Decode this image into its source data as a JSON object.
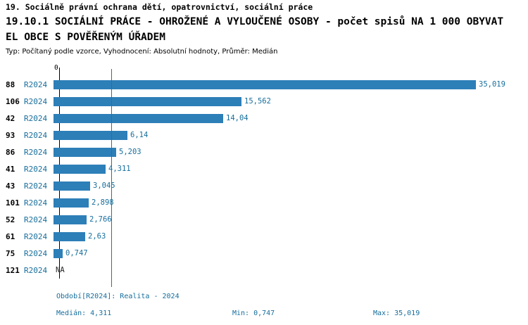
{
  "header": {
    "line1": "19. Sociálně právní ochrana dětí, opatrovnictví, sociální práce",
    "line2": "19.10.1 SOCIÁLNÍ PRÁCE - OHROŽENÉ A VYLOUČENÉ OSOBY - počet spisů NA 1 000 OBYVAT",
    "line3": "EL OBCE S POVĚŘENÝM ÚŘADEM",
    "subtitle": "Typ: Počítaný podle vzorce, Vyhodnocení: Absolutní hodnoty, Průměr: Medián"
  },
  "chart_data": {
    "type": "bar",
    "orientation": "horizontal",
    "title": "19.10.1 SOCIÁLNÍ PRÁCE - OHROŽENÉ A VYLOUČENÉ OSOBY - počet spisů NA 1 000 OBYVATEL OBCE S POVĚŘENÝM ÚŘADEM",
    "xlabel": "",
    "ylabel": "",
    "xlim": [
      0,
      36
    ],
    "zero_label": "0",
    "grid": false,
    "legend": "none",
    "median": 4.311,
    "rows": [
      {
        "id": "88",
        "period": "R2024",
        "value": 35.019,
        "value_label": "35,019"
      },
      {
        "id": "106",
        "period": "R2024",
        "value": 15.562,
        "value_label": "15,562"
      },
      {
        "id": "42",
        "period": "R2024",
        "value": 14.04,
        "value_label": "14,04"
      },
      {
        "id": "93",
        "period": "R2024",
        "value": 6.14,
        "value_label": "6,14"
      },
      {
        "id": "86",
        "period": "R2024",
        "value": 5.203,
        "value_label": "5,203"
      },
      {
        "id": "41",
        "period": "R2024",
        "value": 4.311,
        "value_label": "4,311"
      },
      {
        "id": "43",
        "period": "R2024",
        "value": 3.045,
        "value_label": "3,045"
      },
      {
        "id": "101",
        "period": "R2024",
        "value": 2.898,
        "value_label": "2,898"
      },
      {
        "id": "52",
        "period": "R2024",
        "value": 2.766,
        "value_label": "2,766"
      },
      {
        "id": "61",
        "period": "R2024",
        "value": 2.63,
        "value_label": "2,63"
      },
      {
        "id": "75",
        "period": "R2024",
        "value": 0.747,
        "value_label": "0,747"
      },
      {
        "id": "121",
        "period": "R2024",
        "value": null,
        "value_label": "NA"
      }
    ],
    "colors": {
      "bar": "#2d7fb8",
      "median_line": "#3c7a3c",
      "axis": "#000000",
      "label_text": "#166e9c"
    }
  },
  "footer": {
    "period_label": "Období[R2024]: Realita - 2024",
    "median_label": "Medián: 4,311",
    "min_label": "Min: 0,747",
    "max_label": "Max: 35,019"
  }
}
